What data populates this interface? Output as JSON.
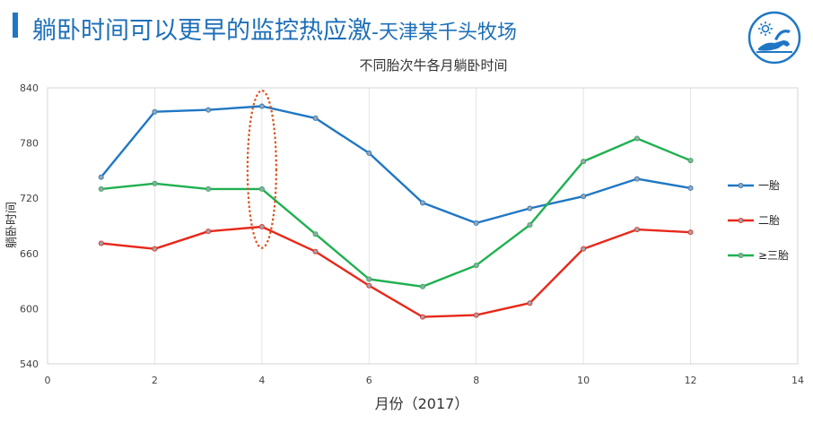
{
  "slide": {
    "title_main": "躺卧时间可以更早的监控热应激",
    "title_sub": "-天津某千头牧场"
  },
  "logo": {
    "icon": "cow-lying-sun-icon",
    "color": "#1f77c4"
  },
  "chart_data": {
    "type": "line",
    "title": "不同胎次牛各月躺卧时间",
    "xlabel": "月份（2017）",
    "ylabel": "躺卧时间",
    "xlim": [
      0,
      14
    ],
    "ylim": [
      540,
      840
    ],
    "xticks": [
      0,
      2,
      4,
      6,
      8,
      10,
      12,
      14
    ],
    "yticks": [
      540,
      600,
      660,
      720,
      780,
      840
    ],
    "grid": "vertical",
    "legend": "right",
    "series": [
      {
        "name": "一胎",
        "color": "#1f77c4",
        "x": [
          1,
          2,
          3,
          4,
          5,
          6,
          7,
          8,
          9,
          10,
          11,
          12
        ],
        "values": [
          743,
          814,
          816,
          820,
          807,
          769,
          715,
          693,
          709,
          722,
          741,
          731
        ]
      },
      {
        "name": "二胎",
        "color": "#e8281a",
        "x": [
          1,
          2,
          3,
          4,
          5,
          6,
          7,
          8,
          9,
          10,
          11,
          12
        ],
        "values": [
          671,
          665,
          684,
          689,
          662,
          625,
          591,
          593,
          606,
          665,
          686,
          683
        ]
      },
      {
        "name": "≥三胎",
        "color": "#1fb050",
        "x": [
          1,
          2,
          3,
          4,
          5,
          6,
          7,
          8,
          9,
          10,
          11,
          12
        ],
        "values": [
          730,
          736,
          730,
          730,
          681,
          632,
          624,
          647,
          691,
          760,
          785,
          761
        ]
      }
    ],
    "annotation": {
      "type": "dashed-ellipse",
      "x": 4,
      "y_range": [
        666,
        837
      ],
      "color": "#d9531e"
    }
  }
}
